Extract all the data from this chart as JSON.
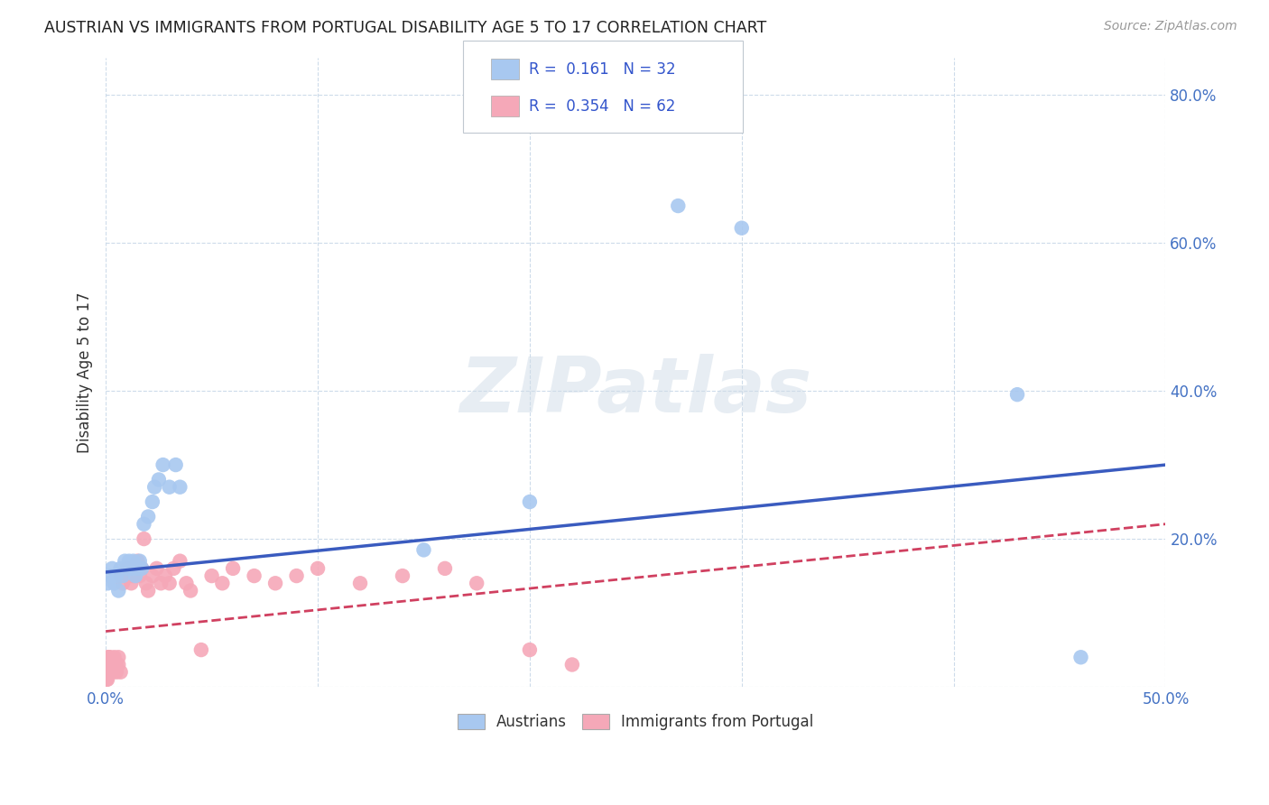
{
  "title": "AUSTRIAN VS IMMIGRANTS FROM PORTUGAL DISABILITY AGE 5 TO 17 CORRELATION CHART",
  "source": "Source: ZipAtlas.com",
  "ylabel": "Disability Age 5 to 17",
  "xlim": [
    0.0,
    0.5
  ],
  "ylim": [
    0.0,
    0.85
  ],
  "xticks": [
    0.0,
    0.1,
    0.2,
    0.3,
    0.4,
    0.5
  ],
  "yticks": [
    0.0,
    0.2,
    0.4,
    0.6,
    0.8
  ],
  "ytick_labels": [
    "",
    "20.0%",
    "40.0%",
    "60.0%",
    "80.0%"
  ],
  "xtick_labels": [
    "0.0%",
    "",
    "",
    "",
    "",
    "50.0%"
  ],
  "austrians_color": "#a8c8f0",
  "portugal_color": "#f5a8b8",
  "line_austrians_color": "#3a5bbf",
  "line_portugal_color": "#d04060",
  "background_color": "#ffffff",
  "grid_color": "#c8d8e8",
  "watermark": "ZIPatlas",
  "bottom_legend1": "Austrians",
  "bottom_legend2": "Immigrants from Portugal",
  "aus_x": [
    0.001,
    0.002,
    0.003,
    0.004,
    0.005,
    0.006,
    0.007,
    0.008,
    0.009,
    0.01,
    0.011,
    0.012,
    0.013,
    0.014,
    0.015,
    0.016,
    0.017,
    0.018,
    0.02,
    0.022,
    0.023,
    0.025,
    0.027,
    0.03,
    0.033,
    0.035,
    0.15,
    0.2,
    0.27,
    0.3,
    0.43,
    0.46
  ],
  "aus_y": [
    0.14,
    0.15,
    0.16,
    0.14,
    0.15,
    0.13,
    0.16,
    0.15,
    0.17,
    0.16,
    0.17,
    0.16,
    0.17,
    0.15,
    0.16,
    0.17,
    0.16,
    0.22,
    0.23,
    0.25,
    0.27,
    0.28,
    0.3,
    0.27,
    0.3,
    0.27,
    0.185,
    0.25,
    0.65,
    0.62,
    0.395,
    0.04
  ],
  "por_x": [
    0.0002,
    0.0003,
    0.0004,
    0.0005,
    0.0006,
    0.0007,
    0.0008,
    0.001,
    0.001,
    0.0012,
    0.0013,
    0.0014,
    0.0015,
    0.002,
    0.002,
    0.002,
    0.003,
    0.003,
    0.004,
    0.004,
    0.005,
    0.005,
    0.006,
    0.006,
    0.007,
    0.007,
    0.008,
    0.009,
    0.01,
    0.011,
    0.012,
    0.013,
    0.014,
    0.015,
    0.016,
    0.017,
    0.018,
    0.019,
    0.02,
    0.022,
    0.024,
    0.026,
    0.028,
    0.03,
    0.032,
    0.035,
    0.038,
    0.04,
    0.045,
    0.05,
    0.055,
    0.06,
    0.07,
    0.08,
    0.09,
    0.1,
    0.12,
    0.14,
    0.16,
    0.175,
    0.2,
    0.22
  ],
  "por_y": [
    0.02,
    0.01,
    0.03,
    0.02,
    0.03,
    0.02,
    0.01,
    0.03,
    0.04,
    0.02,
    0.03,
    0.04,
    0.02,
    0.02,
    0.03,
    0.04,
    0.02,
    0.03,
    0.03,
    0.04,
    0.03,
    0.02,
    0.03,
    0.04,
    0.02,
    0.15,
    0.14,
    0.15,
    0.16,
    0.15,
    0.14,
    0.15,
    0.16,
    0.17,
    0.15,
    0.16,
    0.2,
    0.14,
    0.13,
    0.15,
    0.16,
    0.14,
    0.15,
    0.14,
    0.16,
    0.17,
    0.14,
    0.13,
    0.05,
    0.15,
    0.14,
    0.16,
    0.15,
    0.14,
    0.15,
    0.16,
    0.14,
    0.15,
    0.16,
    0.14,
    0.05,
    0.03
  ]
}
